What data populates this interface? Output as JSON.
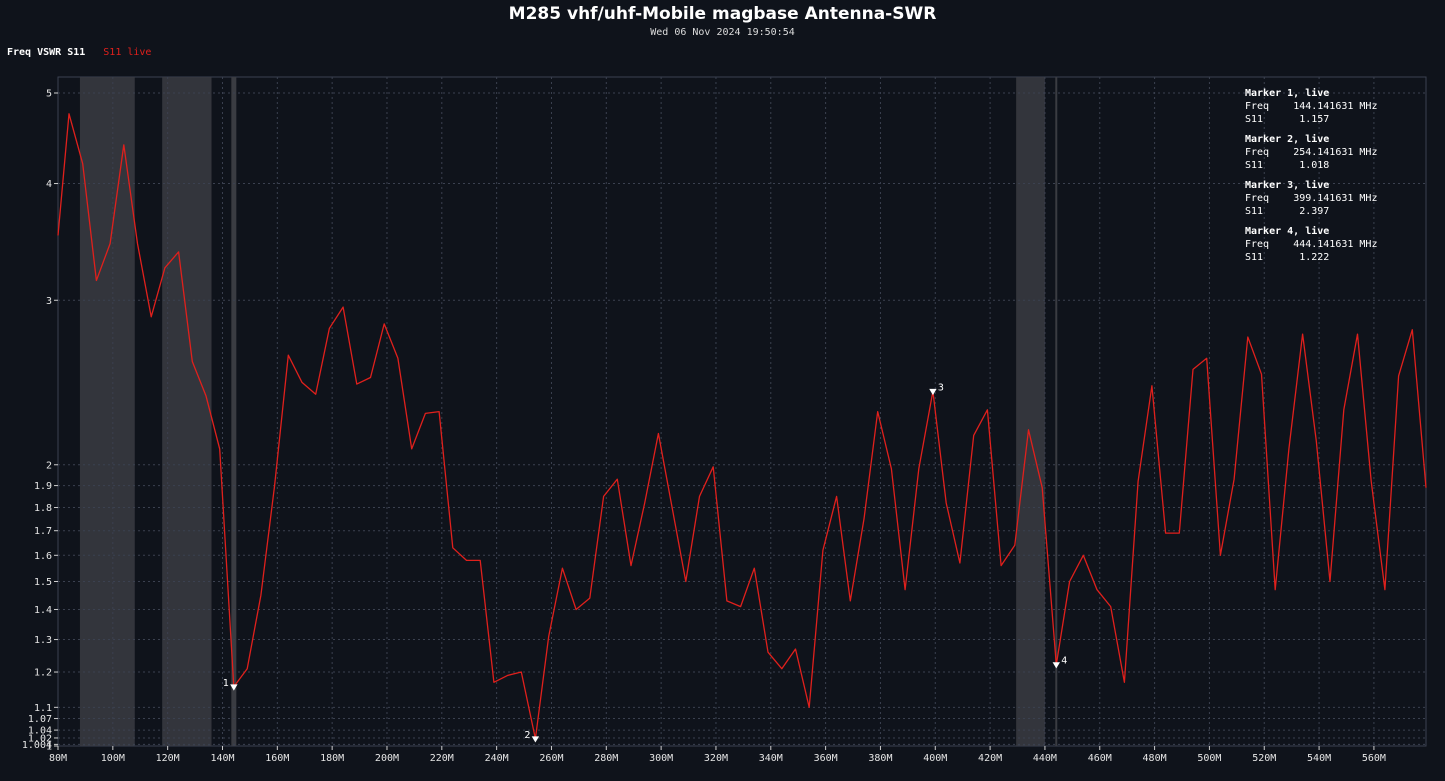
{
  "header": {
    "title": "M285 vhf/uhf-Mobile magbase Antenna-SWR",
    "subtitle": "Wed 06 Nov 2024 19:50:54"
  },
  "legend": {
    "header": "Freq VSWR S11",
    "series_label": "S11 live"
  },
  "colors": {
    "background": "#0f131b",
    "trace": "#e0201c",
    "band": "#3a3c42",
    "grid": "#3b4150",
    "text": "#e6e6e6"
  },
  "markers": [
    {
      "title": "Marker 1, live",
      "freq_label": "Freq",
      "freq": "144.141631 MHz",
      "s11_label": "S11",
      "s11": "1.157",
      "id": "1",
      "x": 144.14,
      "y": 1.157
    },
    {
      "title": "Marker 2, live",
      "freq_label": "Freq",
      "freq": "254.141631 MHz",
      "s11_label": "S11",
      "s11": "1.018",
      "id": "2",
      "x": 254.14,
      "y": 1.018
    },
    {
      "title": "Marker 3, live",
      "freq_label": "Freq",
      "freq": "399.141631 MHz",
      "s11_label": "S11",
      "s11": "2.397",
      "id": "3",
      "x": 399.14,
      "y": 2.397
    },
    {
      "title": "Marker 4, live",
      "freq_label": "Freq",
      "freq": "444.141631 MHz",
      "s11_label": "S11",
      "s11": "1.222",
      "id": "4",
      "x": 444.14,
      "y": 1.222
    }
  ],
  "chart_data": {
    "type": "line",
    "title": "M285 vhf/uhf-Mobile magbase Antenna-SWR",
    "subtitle": "Wed 06 Nov 2024 19:50:54",
    "xlabel": "",
    "ylabel": "",
    "x_unit": "MHz",
    "xlim": [
      80,
      579
    ],
    "ylim": [
      1,
      5.3
    ],
    "y_scale": "log",
    "grid": true,
    "x_ticks": [
      {
        "v": 80,
        "label": "80M"
      },
      {
        "v": 100,
        "label": "100M"
      },
      {
        "v": 120,
        "label": "120M"
      },
      {
        "v": 140,
        "label": "140M"
      },
      {
        "v": 160,
        "label": "160M"
      },
      {
        "v": 180,
        "label": "180M"
      },
      {
        "v": 200,
        "label": "200M"
      },
      {
        "v": 220,
        "label": "220M"
      },
      {
        "v": 240,
        "label": "240M"
      },
      {
        "v": 260,
        "label": "260M"
      },
      {
        "v": 280,
        "label": "280M"
      },
      {
        "v": 300,
        "label": "300M"
      },
      {
        "v": 320,
        "label": "320M"
      },
      {
        "v": 340,
        "label": "340M"
      },
      {
        "v": 360,
        "label": "360M"
      },
      {
        "v": 380,
        "label": "380M"
      },
      {
        "v": 400,
        "label": "400M"
      },
      {
        "v": 420,
        "label": "420M"
      },
      {
        "v": 440,
        "label": "440M"
      },
      {
        "v": 460,
        "label": "460M"
      },
      {
        "v": 480,
        "label": "480M"
      },
      {
        "v": 500,
        "label": "500M"
      },
      {
        "v": 520,
        "label": "520M"
      },
      {
        "v": 540,
        "label": "540M"
      },
      {
        "v": 560,
        "label": "560M"
      }
    ],
    "y_ticks": [
      {
        "v": 1,
        "label": "1"
      },
      {
        "v": 1.004,
        "label": "1.004"
      },
      {
        "v": 1.02,
        "label": "1.02"
      },
      {
        "v": 1.04,
        "label": "1.04"
      },
      {
        "v": 1.07,
        "label": "1.07"
      },
      {
        "v": 1.1,
        "label": "1.1"
      },
      {
        "v": 1.2,
        "label": "1.2"
      },
      {
        "v": 1.3,
        "label": "1.3"
      },
      {
        "v": 1.4,
        "label": "1.4"
      },
      {
        "v": 1.5,
        "label": "1.5"
      },
      {
        "v": 1.6,
        "label": "1.6"
      },
      {
        "v": 1.7,
        "label": "1.7"
      },
      {
        "v": 1.8,
        "label": "1.8"
      },
      {
        "v": 1.9,
        "label": "1.9"
      },
      {
        "v": 2,
        "label": "2"
      },
      {
        "v": 3,
        "label": "3"
      },
      {
        "v": 4,
        "label": "4"
      },
      {
        "v": 5,
        "label": "5"
      }
    ],
    "bands": [
      [
        88,
        108
      ],
      [
        118,
        136
      ],
      [
        429.5,
        440
      ]
    ],
    "marker_lines": [
      144.14,
      444.14
    ],
    "series": [
      {
        "name": "S11 live",
        "x": [
          80,
          84,
          89,
          94,
          99,
          104,
          109,
          114,
          119,
          124,
          129,
          134,
          139,
          144.14,
          149,
          154,
          159,
          164,
          169,
          174,
          179,
          184,
          189,
          194,
          199,
          204,
          209,
          214,
          219,
          224,
          229,
          234,
          239,
          244,
          249,
          254.14,
          259,
          264,
          269,
          274,
          279,
          284,
          289,
          294,
          299,
          304,
          309,
          314,
          319,
          324,
          329,
          334,
          339,
          344,
          349,
          354,
          359,
          364,
          369,
          374,
          379,
          384,
          389,
          394,
          399.14,
          404,
          409,
          414,
          419,
          424,
          429,
          434,
          439,
          444.14,
          449,
          454,
          459,
          464,
          469,
          474,
          479,
          484,
          489,
          494,
          499,
          504,
          509,
          514,
          519,
          524,
          529,
          534,
          539,
          544,
          549,
          554,
          559,
          564,
          569,
          574,
          579
        ],
        "y": [
          3.52,
          4.75,
          4.2,
          3.15,
          3.45,
          4.4,
          3.45,
          2.88,
          3.25,
          3.38,
          2.58,
          2.37,
          2.08,
          1.157,
          1.21,
          1.45,
          1.9,
          2.62,
          2.45,
          2.38,
          2.8,
          2.95,
          2.44,
          2.48,
          2.83,
          2.6,
          2.08,
          2.27,
          2.28,
          1.63,
          1.58,
          1.58,
          1.17,
          1.19,
          1.2,
          1.018,
          1.31,
          1.55,
          1.4,
          1.44,
          1.85,
          1.93,
          1.56,
          1.82,
          2.16,
          1.8,
          1.5,
          1.85,
          1.99,
          1.43,
          1.41,
          1.55,
          1.26,
          1.21,
          1.27,
          1.1,
          1.62,
          1.85,
          1.43,
          1.75,
          2.28,
          1.98,
          1.47,
          1.98,
          2.397,
          1.82,
          1.57,
          2.15,
          2.29,
          1.56,
          1.64,
          2.18,
          1.89,
          1.222,
          1.5,
          1.6,
          1.47,
          1.41,
          1.17,
          1.92,
          2.43,
          1.69,
          1.69,
          2.53,
          2.6,
          1.6,
          1.93,
          2.74,
          2.5,
          1.47,
          2.08,
          2.76,
          2.12,
          1.5,
          2.29,
          2.76,
          1.92,
          1.47,
          2.49,
          2.79,
          1.89
        ]
      }
    ]
  }
}
